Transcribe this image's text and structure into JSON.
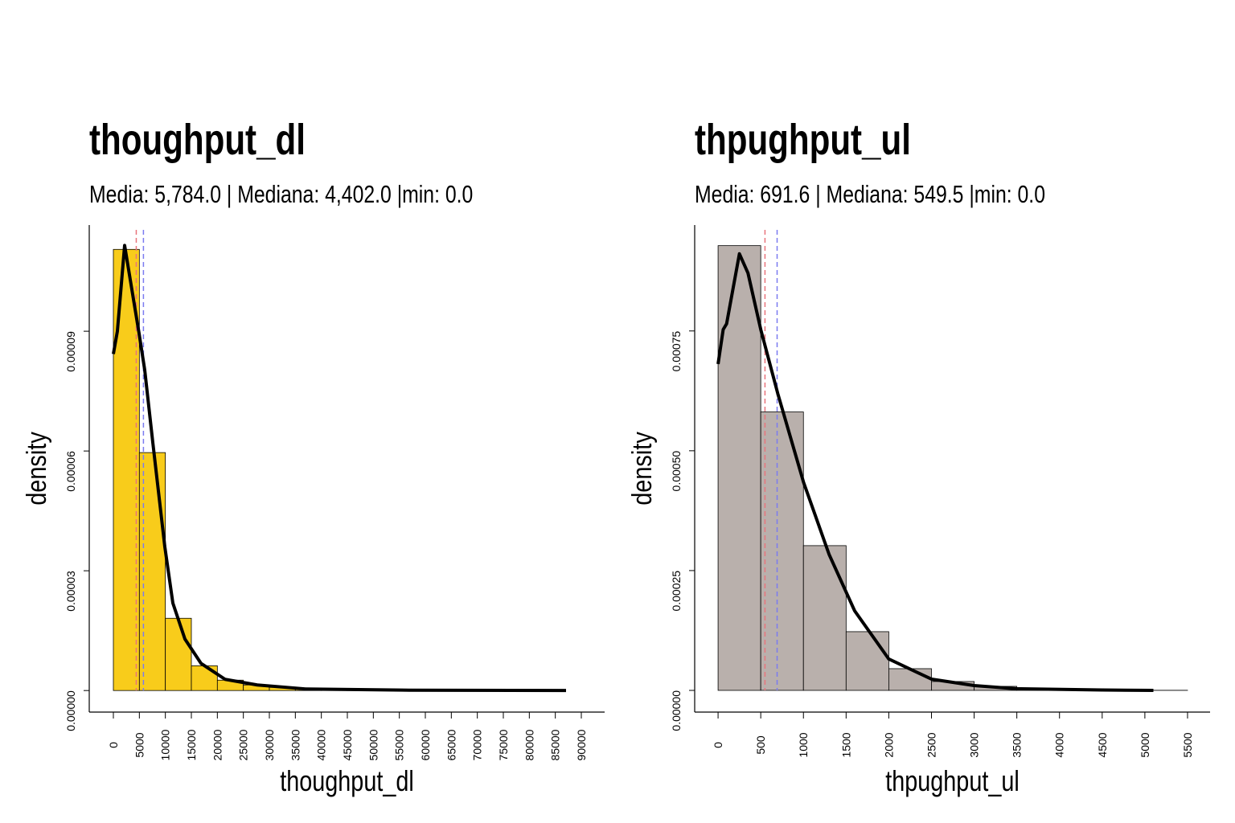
{
  "chart_data": [
    {
      "type": "histogram",
      "title": "thoughput_dl",
      "subtitle": "Media: 5,784.0 | Mediana: 4,402.0 |min: 0.0",
      "xlabel": "thoughput_dl",
      "ylabel": "density",
      "color": "#f8cc1b",
      "bins": [
        0,
        5000,
        10000,
        15000,
        20000,
        25000,
        30000,
        35000,
        40000,
        45000,
        50000,
        55000,
        60000,
        65000,
        70000,
        75000,
        80000,
        85000,
        90000
      ],
      "values": [
        0.0001105,
        5.96e-05,
        1.81e-05,
        6.2e-06,
        2.6e-06,
        1.4e-06,
        8e-07,
        4e-07,
        2e-07,
        1e-07,
        1e-07,
        0,
        0,
        0,
        0,
        0,
        0,
        0
      ],
      "density_curve": {
        "x": [
          0,
          770,
          2165,
          4950,
          6031,
          7577,
          9897,
          11443,
          13763,
          16856,
          21495,
          27680,
          36959,
          55515,
          87062
        ],
        "y": [
          8.43e-05,
          9e-05,
          0.0001115,
          8.94e-05,
          8.03e-05,
          6.22e-05,
          3.6e-05,
          2.19e-05,
          1.29e-05,
          6.8e-06,
          2.8e-06,
          1.4e-06,
          4e-07,
          1e-07,
          0
        ]
      },
      "reference_lines": [
        {
          "value": 4402,
          "color": "#e8747c"
        },
        {
          "value": 5784,
          "color": "#7b7bf0"
        }
      ],
      "xlim": [
        -4639,
        94485
      ],
      "ylim": [
        -5.4e-06,
        0.0001166
      ],
      "xticks": [
        0,
        5000,
        10000,
        15000,
        20000,
        25000,
        30000,
        35000,
        40000,
        45000,
        50000,
        55000,
        60000,
        65000,
        70000,
        75000,
        80000,
        85000,
        90000
      ],
      "yticks": [
        {
          "value": 0,
          "label": "0.00000"
        },
        {
          "value": 3e-05,
          "label": "0.00003"
        },
        {
          "value": 6e-05,
          "label": "0.00006"
        },
        {
          "value": 9e-05,
          "label": "0.00009"
        }
      ]
    },
    {
      "type": "histogram",
      "title": "thpughput_ul",
      "subtitle": "Media: 691.6 | Mediana: 549.5 |min: 0.0",
      "xlabel": "thpughput_ul",
      "ylabel": "density",
      "color": "#b9b0ac",
      "bins": [
        0,
        500,
        1000,
        1500,
        2000,
        2500,
        3000,
        3500,
        4000,
        4500,
        5000,
        5500
      ],
      "values": [
        0.000928,
        0.000581,
        0.000302,
        0.0001225,
        4.53e-05,
        1.85e-05,
        8.4e-06,
        3.4e-06,
        1.7e-06,
        8e-07,
        2e-07
      ],
      "density_curve": {
        "x": [
          0,
          60,
          100,
          250,
          350,
          500,
          700,
          1000,
          1300,
          1600,
          2000,
          2500,
          3000,
          3500,
          4500,
          5100
        ],
        "y": [
          0.000681,
          0.000753,
          0.000765,
          0.000911,
          0.000871,
          0.000753,
          0.000619,
          0.000435,
          0.000284,
          0.000166,
          6.54e-05,
          2.35e-05,
          1.01e-05,
          3.4e-06,
          8e-07,
          0
        ]
      },
      "reference_lines": [
        {
          "value": 549.5,
          "color": "#e8747c"
        },
        {
          "value": 691.6,
          "color": "#7b7bf0"
        }
      ],
      "xlim": [
        -274,
        5764
      ],
      "ylim": [
        -4.53e-05,
        0.000971
      ],
      "xticks": [
        0,
        500,
        1000,
        1500,
        2000,
        2500,
        3000,
        3500,
        4000,
        4500,
        5000,
        5500
      ],
      "yticks": [
        {
          "value": 0,
          "label": "0.00000"
        },
        {
          "value": 0.00025,
          "label": "0.00025"
        },
        {
          "value": 0.0005,
          "label": "0.00050"
        },
        {
          "value": 0.00075,
          "label": "0.00075"
        }
      ]
    }
  ]
}
